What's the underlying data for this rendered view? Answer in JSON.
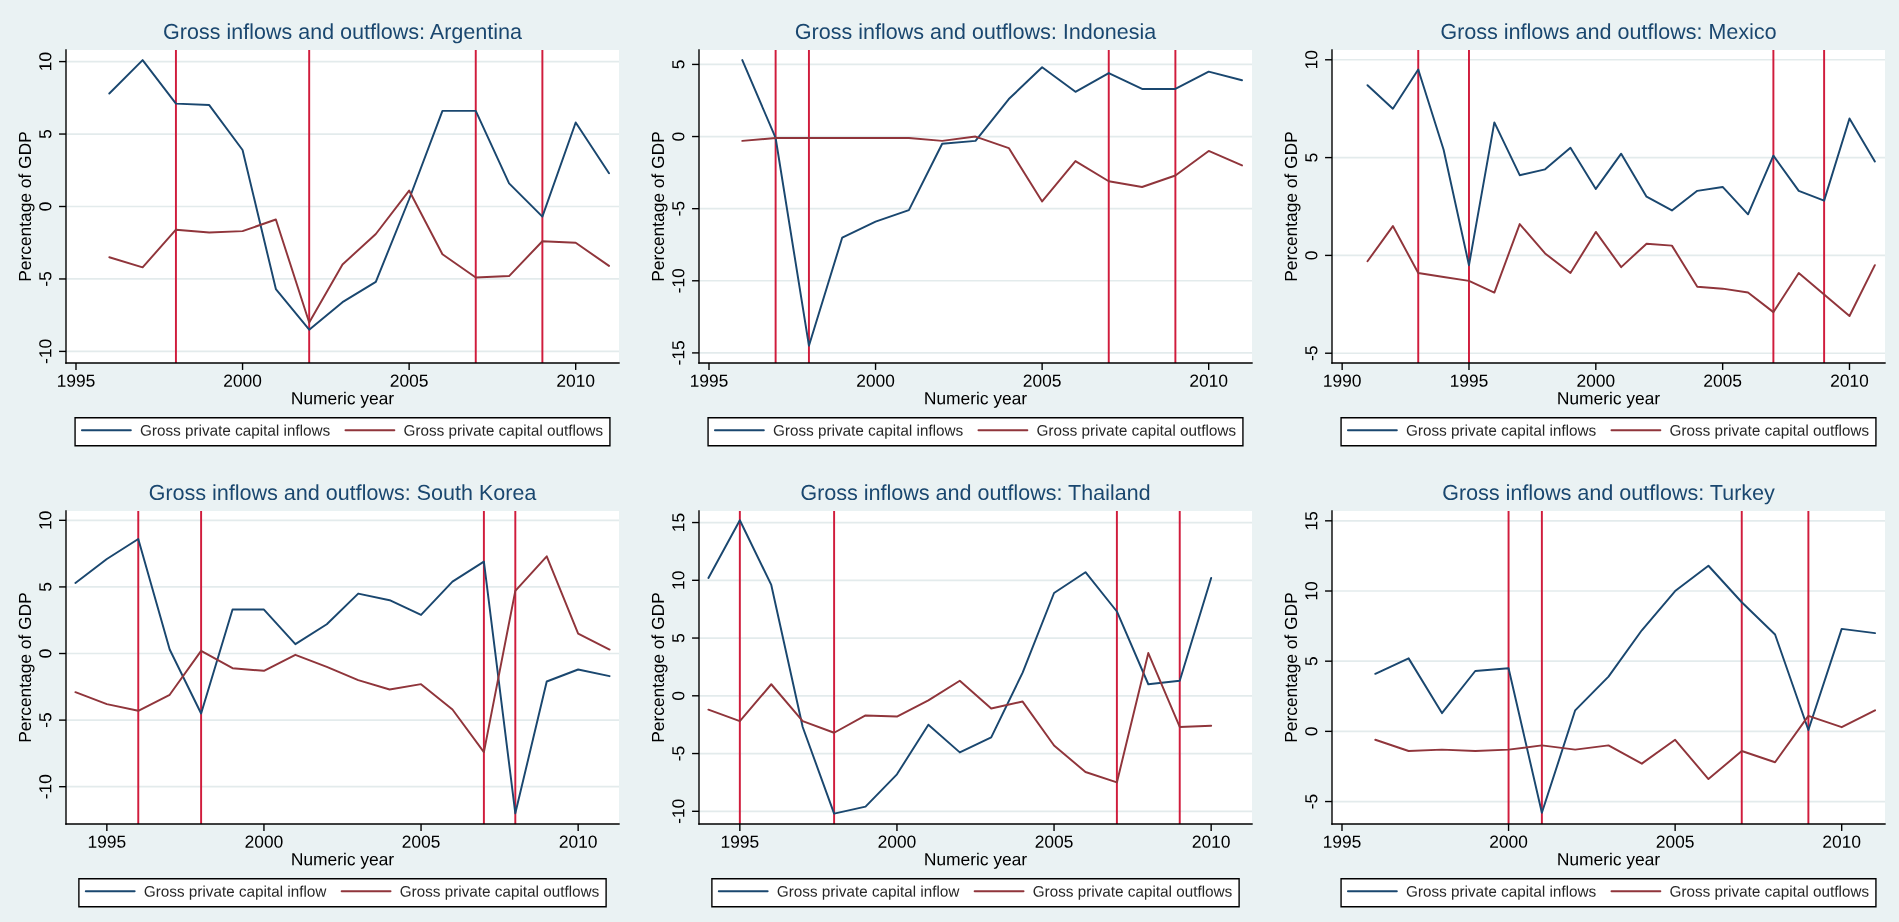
{
  "chart_data": [
    {
      "type": "line",
      "title": "Gross inflows and outflows: Argentina",
      "xlabel": "Numeric year",
      "ylabel": "Percentage of GDP",
      "x": [
        1996,
        1997,
        1998,
        1999,
        2000,
        2001,
        2002,
        2003,
        2004,
        2005,
        2006,
        2007,
        2008,
        2009,
        2010,
        2011
      ],
      "series": [
        {
          "name": "Gross private capital inflows",
          "color": "#1a476f",
          "values": [
            7.8,
            10.1,
            7.1,
            7.0,
            3.9,
            -5.7,
            -8.5,
            -6.6,
            -5.2,
            0.5,
            6.6,
            6.6,
            1.6,
            -0.7,
            5.8,
            2.3
          ]
        },
        {
          "name": "Gross private capital outflows",
          "color": "#90353b",
          "values": [
            -3.5,
            -4.2,
            -1.6,
            -1.8,
            -1.7,
            -0.9,
            -8.0,
            -4.0,
            -1.9,
            1.1,
            -3.3,
            -4.9,
            -4.8,
            -2.4,
            -2.5,
            -4.1
          ]
        }
      ],
      "xlim": [
        1994.7,
        2011.3
      ],
      "ylim": [
        -10.8,
        10.8
      ],
      "xticks": [
        1995,
        2000,
        2005,
        2010
      ],
      "yticks": [
        -10,
        -5,
        0,
        5,
        10
      ],
      "ref_lines": [
        {
          "axis": "x",
          "value": 1998,
          "color": "#d01c3c"
        },
        {
          "axis": "x",
          "value": 2002,
          "color": "#d01c3c"
        },
        {
          "axis": "x",
          "value": 2007,
          "color": "#d01c3c"
        },
        {
          "axis": "x",
          "value": 2009,
          "color": "#d01c3c"
        }
      ],
      "grid": "y",
      "legend": "bottom"
    },
    {
      "type": "line",
      "title": "Gross inflows and outflows: Indonesia",
      "xlabel": "Numeric year",
      "ylabel": "Percentage of GDP",
      "x": [
        1996,
        1997,
        1998,
        1999,
        2000,
        2001,
        2002,
        2003,
        2004,
        2005,
        2006,
        2007,
        2008,
        2009,
        2010,
        2011
      ],
      "series": [
        {
          "name": "Gross private capital inflows",
          "color": "#1a476f",
          "values": [
            5.3,
            -0.1,
            -14.5,
            -7.0,
            -5.9,
            -5.1,
            -0.5,
            -0.3,
            2.6,
            4.8,
            3.1,
            4.4,
            3.3,
            3.3,
            4.5,
            3.9
          ]
        },
        {
          "name": "Gross private capital outflows",
          "color": "#90353b",
          "values": [
            -0.3,
            -0.1,
            -0.1,
            -0.1,
            -0.1,
            -0.1,
            -0.3,
            0.0,
            -0.8,
            -4.5,
            -1.7,
            -3.1,
            -3.5,
            -2.7,
            -1.0,
            -2.0
          ]
        }
      ],
      "xlim": [
        1994.7,
        2011.3
      ],
      "ylim": [
        -15.7,
        6.0
      ],
      "xticks": [
        1995,
        2000,
        2005,
        2010
      ],
      "yticks": [
        -15,
        -10,
        -5,
        0,
        5
      ],
      "ref_lines": [
        {
          "axis": "x",
          "value": 1997,
          "color": "#d01c3c"
        },
        {
          "axis": "x",
          "value": 1998,
          "color": "#d01c3c"
        },
        {
          "axis": "x",
          "value": 2007,
          "color": "#d01c3c"
        },
        {
          "axis": "x",
          "value": 2009,
          "color": "#d01c3c"
        }
      ],
      "grid": "y",
      "legend": "bottom"
    },
    {
      "type": "line",
      "title": "Gross inflows and outflows: Mexico",
      "xlabel": "Numeric year",
      "ylabel": "Percentage of GDP",
      "x": [
        1991,
        1992,
        1993,
        1994,
        1995,
        1996,
        1997,
        1998,
        1999,
        2000,
        2001,
        2002,
        2003,
        2004,
        2005,
        2006,
        2007,
        2008,
        2009,
        2010,
        2011
      ],
      "series": [
        {
          "name": "Gross private capital inflows",
          "color": "#1a476f",
          "values": [
            8.7,
            7.5,
            9.5,
            5.4,
            -0.5,
            6.8,
            4.1,
            4.4,
            5.5,
            3.4,
            5.2,
            3.0,
            2.3,
            3.3,
            3.5,
            2.1,
            5.1,
            3.3,
            2.8,
            7.0,
            4.8
          ]
        },
        {
          "name": "Gross private capital outflows",
          "color": "#90353b",
          "values": [
            -0.3,
            1.5,
            -0.9,
            -1.1,
            -1.3,
            -1.9,
            1.6,
            0.1,
            -0.9,
            1.2,
            -0.6,
            0.6,
            0.5,
            -1.6,
            -1.7,
            -1.9,
            -2.9,
            -0.9,
            -2.0,
            -3.1,
            -0.5
          ]
        }
      ],
      "xlim": [
        1989.6,
        2011.4
      ],
      "ylim": [
        -5.5,
        10.5
      ],
      "xticks": [
        1990,
        1995,
        2000,
        2005,
        2010
      ],
      "yticks": [
        -5,
        0,
        5,
        10
      ],
      "ref_lines": [
        {
          "axis": "x",
          "value": 1993,
          "color": "#d01c3c"
        },
        {
          "axis": "x",
          "value": 1995,
          "color": "#d01c3c"
        },
        {
          "axis": "x",
          "value": 2007,
          "color": "#d01c3c"
        },
        {
          "axis": "x",
          "value": 2009,
          "color": "#d01c3c"
        }
      ],
      "grid": "y",
      "legend": "bottom"
    },
    {
      "type": "line",
      "title": "Gross inflows and outflows: South Korea",
      "xlabel": "Numeric year",
      "ylabel": "Percentage of GDP",
      "x": [
        1994,
        1995,
        1996,
        1997,
        1998,
        1999,
        2000,
        2001,
        2002,
        2003,
        2004,
        2005,
        2006,
        2007,
        2008,
        2009,
        2010,
        2011
      ],
      "series": [
        {
          "name": "Gross private capital inflow",
          "color": "#1a476f",
          "values": [
            5.3,
            7.1,
            8.6,
            0.3,
            -4.5,
            3.3,
            3.3,
            0.7,
            2.2,
            4.5,
            4.0,
            2.9,
            5.4,
            6.9,
            -12.0,
            -2.1,
            -1.2,
            -1.7
          ]
        },
        {
          "name": "Gross private capital outflows",
          "color": "#90353b",
          "values": [
            -2.9,
            -3.8,
            -4.3,
            -3.1,
            0.2,
            -1.1,
            -1.3,
            -0.1,
            -1.0,
            -2.0,
            -2.7,
            -2.3,
            -4.2,
            -7.4,
            4.7,
            7.3,
            1.5,
            0.3
          ]
        }
      ],
      "xlim": [
        1993.7,
        2011.3
      ],
      "ylim": [
        -12.8,
        10.7
      ],
      "xticks": [
        1995,
        2000,
        2005,
        2010
      ],
      "yticks": [
        -10,
        -5,
        0,
        5,
        10
      ],
      "ref_lines": [
        {
          "axis": "x",
          "value": 1996,
          "color": "#d01c3c"
        },
        {
          "axis": "x",
          "value": 1998,
          "color": "#d01c3c"
        },
        {
          "axis": "x",
          "value": 2007,
          "color": "#d01c3c"
        },
        {
          "axis": "x",
          "value": 2008,
          "color": "#d01c3c"
        }
      ],
      "grid": "y",
      "legend": "bottom"
    },
    {
      "type": "line",
      "title": "Gross inflows and outflows: Thailand",
      "xlabel": "Numeric year",
      "ylabel": "Percentage of GDP",
      "x": [
        1994,
        1995,
        1996,
        1997,
        1998,
        1999,
        2000,
        2001,
        2002,
        2003,
        2004,
        2005,
        2006,
        2007,
        2008,
        2009,
        2010
      ],
      "series": [
        {
          "name": "Gross private capital inflow",
          "color": "#1a476f",
          "values": [
            10.2,
            15.2,
            9.6,
            -2.7,
            -10.2,
            -9.6,
            -6.8,
            -2.5,
            -4.9,
            -3.6,
            2.0,
            8.9,
            10.7,
            7.3,
            1.0,
            1.3,
            10.2
          ]
        },
        {
          "name": "Gross private capital outflows",
          "color": "#90353b",
          "values": [
            -1.2,
            -2.2,
            1.0,
            -2.2,
            -3.2,
            -1.7,
            -1.8,
            -0.4,
            1.3,
            -1.1,
            -0.5,
            -4.3,
            -6.6,
            -7.5,
            3.7,
            -2.7,
            -2.6
          ]
        }
      ],
      "xlim": [
        1993.7,
        2011.3
      ],
      "ylim": [
        -11.1,
        16.0
      ],
      "xticks": [
        1995,
        2000,
        2005,
        2010
      ],
      "yticks": [
        -10,
        -5,
        0,
        5,
        10,
        15
      ],
      "ref_lines": [
        {
          "axis": "x",
          "value": 1995,
          "color": "#d01c3c"
        },
        {
          "axis": "x",
          "value": 1998,
          "color": "#d01c3c"
        },
        {
          "axis": "x",
          "value": 2007,
          "color": "#d01c3c"
        },
        {
          "axis": "x",
          "value": 2009,
          "color": "#d01c3c"
        }
      ],
      "grid": "y",
      "legend": "bottom"
    },
    {
      "type": "line",
      "title": "Gross inflows and outflows: Turkey",
      "xlabel": "Numeric year",
      "ylabel": "Percentage of GDP",
      "x": [
        1996,
        1997,
        1998,
        1999,
        2000,
        2001,
        2002,
        2003,
        2004,
        2005,
        2006,
        2007,
        2008,
        2009,
        2010,
        2011
      ],
      "series": [
        {
          "name": "Gross private capital inflows",
          "color": "#1a476f",
          "values": [
            4.1,
            5.2,
            1.3,
            4.3,
            4.5,
            -5.8,
            1.5,
            3.9,
            7.2,
            10.0,
            11.8,
            9.2,
            6.9,
            0.1,
            7.3,
            7.0
          ]
        },
        {
          "name": "Gross private capital outflows",
          "color": "#90353b",
          "values": [
            -0.6,
            -1.4,
            -1.3,
            -1.4,
            -1.3,
            -1.0,
            -1.3,
            -1.0,
            -2.3,
            -0.6,
            -3.4,
            -1.4,
            -2.2,
            1.1,
            0.3,
            1.5
          ]
        }
      ],
      "xlim": [
        1994.7,
        2011.3
      ],
      "ylim": [
        -6.6,
        15.7
      ],
      "xticks": [
        1995,
        2000,
        2005,
        2010
      ],
      "yticks": [
        -5,
        0,
        5,
        10,
        15
      ],
      "ref_lines": [
        {
          "axis": "x",
          "value": 2000,
          "color": "#d01c3c"
        },
        {
          "axis": "x",
          "value": 2001,
          "color": "#d01c3c"
        },
        {
          "axis": "x",
          "value": 2007,
          "color": "#d01c3c"
        },
        {
          "axis": "x",
          "value": 2009,
          "color": "#d01c3c"
        }
      ],
      "grid": "y",
      "legend": "bottom"
    }
  ]
}
